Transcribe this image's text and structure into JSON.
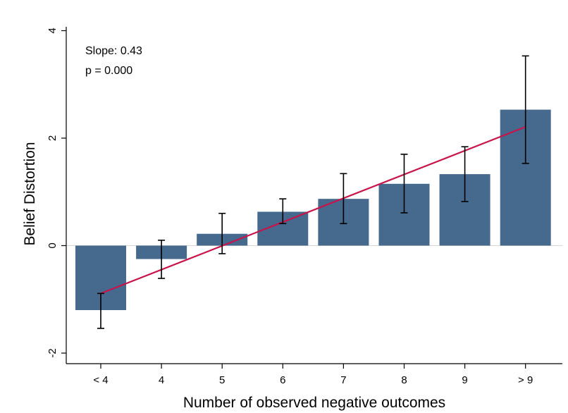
{
  "chart_data": {
    "type": "bar",
    "title": "",
    "xlabel": "Number of observed negative outcomes",
    "ylabel": "Belief Distortion",
    "categories": [
      "< 4",
      "4",
      "5",
      "6",
      "7",
      "8",
      "9",
      "> 9"
    ],
    "values": [
      -1.2,
      -0.25,
      0.22,
      0.63,
      0.87,
      1.15,
      1.33,
      2.53
    ],
    "error_bars": {
      "lower": [
        -1.54,
        -0.61,
        -0.15,
        0.41,
        0.41,
        0.61,
        0.82,
        1.53
      ],
      "upper": [
        -0.89,
        0.1,
        0.6,
        0.87,
        1.34,
        1.7,
        1.84,
        3.53
      ]
    },
    "fit_line": {
      "x_start_index": 0,
      "x_end_index": 7,
      "y_start": -0.89,
      "y_end": 2.21
    },
    "annotations": {
      "slope": "Slope: 0.43",
      "p_value": "p = 0.000"
    },
    "ylim": [
      -2.1,
      4.05
    ],
    "yticks": [
      -2,
      0,
      2,
      4
    ],
    "yticks_labels": [
      "-2",
      "0",
      "2",
      "4"
    ],
    "grid": false,
    "colors": {
      "bar": "#46698e",
      "fit_line": "#c8144b",
      "error_bar": "#000000",
      "zero_line": "#d7d7d7"
    }
  }
}
